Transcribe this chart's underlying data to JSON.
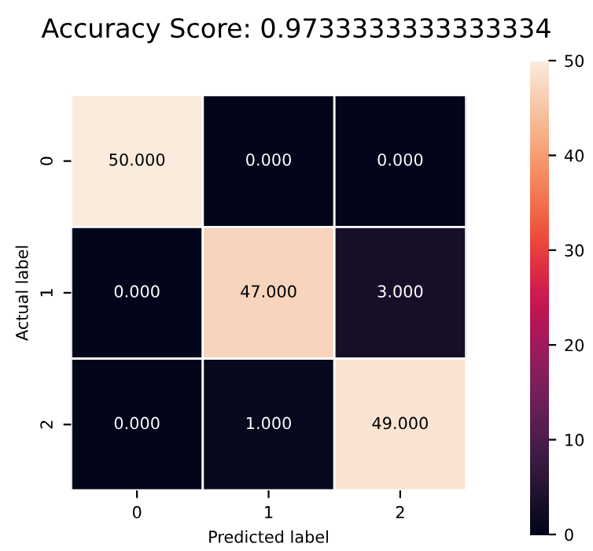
{
  "chart_data": {
    "type": "heatmap",
    "title": "Accuracy Score: 0.9733333333333334",
    "xlabel": "Predicted label",
    "ylabel": "Actual label",
    "categories": [
      "0",
      "1",
      "2"
    ],
    "y_categories": [
      "0",
      "1",
      "2"
    ],
    "cells": [
      [
        50,
        0,
        0
      ],
      [
        0,
        47,
        3
      ],
      [
        0,
        1,
        49
      ]
    ],
    "cell_labels": [
      [
        "50.000",
        "0.000",
        "0.000"
      ],
      [
        "0.000",
        "47.000",
        "3.000"
      ],
      [
        "0.000",
        "1.000",
        "49.000"
      ]
    ],
    "clim": [
      0,
      50
    ],
    "cticks": [
      0,
      10,
      20,
      30,
      40,
      50
    ]
  }
}
